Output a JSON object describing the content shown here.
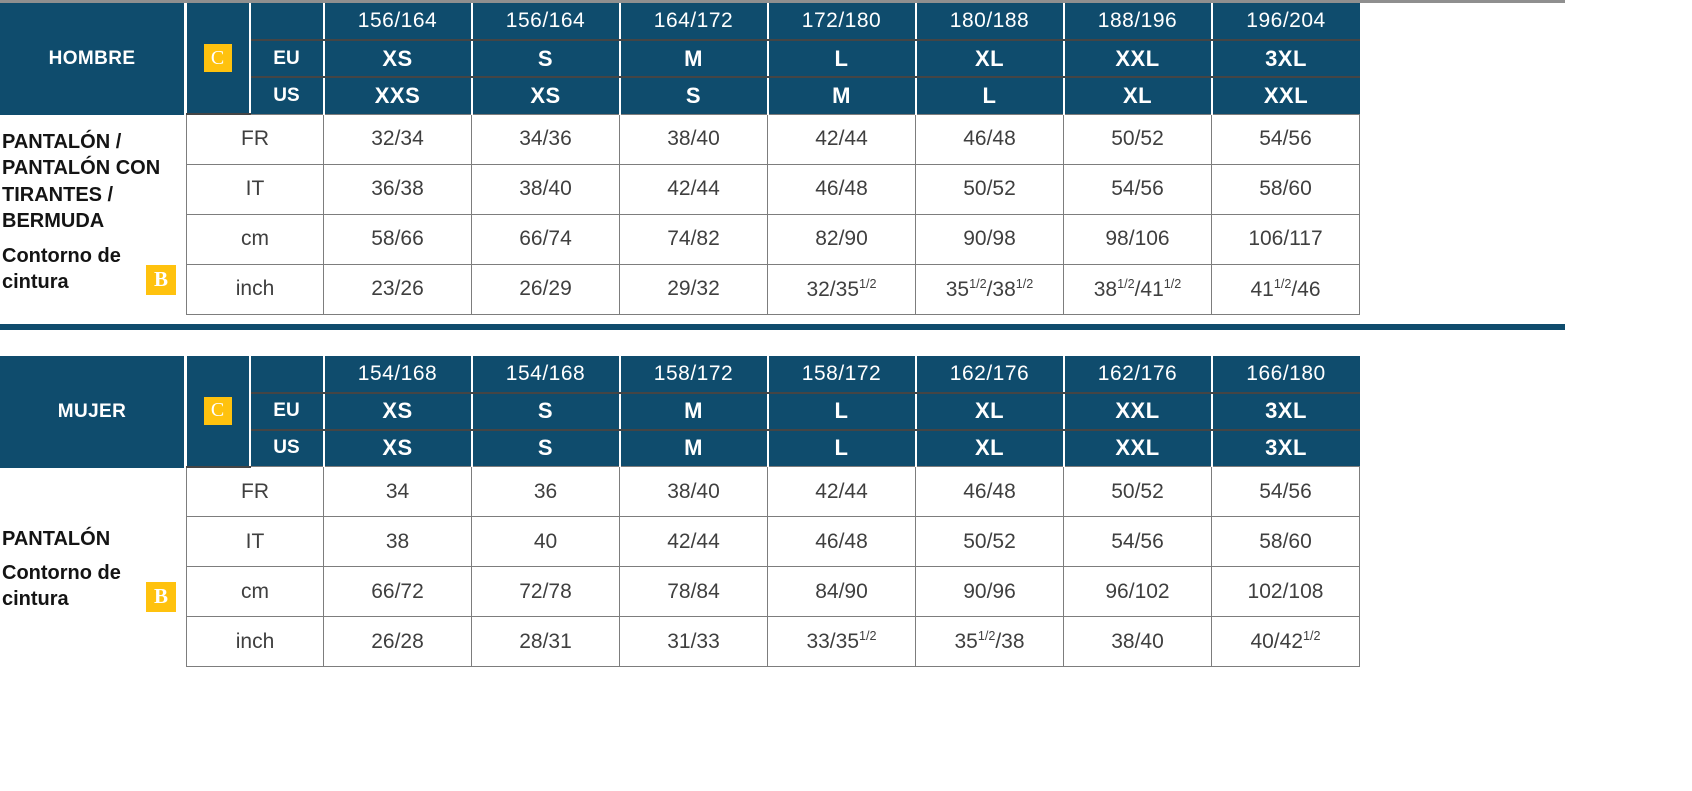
{
  "colors": {
    "navy": "#0f4c6d",
    "accent_yellow": "#ffc20e"
  },
  "tables": [
    {
      "group_title": "HOMBRE",
      "badge_c": "C",
      "badge_b": "B",
      "product_label": "PANTALÓN / PANTALÓN CON TIRANTES / BERMUDA",
      "measure_label": "Contorno de cintura",
      "row_header_labels": {
        "eu": "EU",
        "us": "US"
      },
      "heights": [
        "156/164",
        "156/164",
        "164/172",
        "172/180",
        "180/188",
        "188/196",
        "196/204"
      ],
      "eu_sizes": [
        "XS",
        "S",
        "M",
        "L",
        "XL",
        "XXL",
        "3XL"
      ],
      "us_sizes": [
        "XXS",
        "XS",
        "S",
        "M",
        "L",
        "XL",
        "XXL"
      ],
      "rows": [
        {
          "label": "FR",
          "values": [
            "32/34",
            "34/36",
            "38/40",
            "42/44",
            "46/48",
            "50/52",
            "54/56"
          ]
        },
        {
          "label": "IT",
          "values": [
            "36/38",
            "38/40",
            "42/44",
            "46/48",
            "50/52",
            "54/56",
            "58/60"
          ]
        },
        {
          "label": "cm",
          "values": [
            "58/66",
            "66/74",
            "74/82",
            "82/90",
            "90/98",
            "98/106",
            "106/117"
          ]
        },
        {
          "label": "inch",
          "values": [
            "23/26",
            "26/29",
            "29/32",
            "32/35½",
            "35½/38½",
            "38½/41½",
            "41½/46"
          ]
        }
      ]
    },
    {
      "group_title": "MUJER",
      "badge_c": "C",
      "badge_b": "B",
      "product_label": "PANTALÓN",
      "measure_label": "Contorno de cintura",
      "row_header_labels": {
        "eu": "EU",
        "us": "US"
      },
      "heights": [
        "154/168",
        "154/168",
        "158/172",
        "158/172",
        "162/176",
        "162/176",
        "166/180"
      ],
      "eu_sizes": [
        "XS",
        "S",
        "M",
        "L",
        "XL",
        "XXL",
        "3XL"
      ],
      "us_sizes": [
        "XS",
        "S",
        "M",
        "L",
        "XL",
        "XXL",
        "3XL"
      ],
      "rows": [
        {
          "label": "FR",
          "values": [
            "34",
            "36",
            "38/40",
            "42/44",
            "46/48",
            "50/52",
            "54/56"
          ]
        },
        {
          "label": "IT",
          "values": [
            "38",
            "40",
            "42/44",
            "46/48",
            "50/52",
            "54/56",
            "58/60"
          ]
        },
        {
          "label": "cm",
          "values": [
            "66/72",
            "72/78",
            "78/84",
            "84/90",
            "90/96",
            "96/102",
            "102/108"
          ]
        },
        {
          "label": "inch",
          "values": [
            "26/28",
            "28/31",
            "31/33",
            "33/35½",
            "35½/38",
            "38/40",
            "40/42½"
          ]
        }
      ]
    }
  ]
}
